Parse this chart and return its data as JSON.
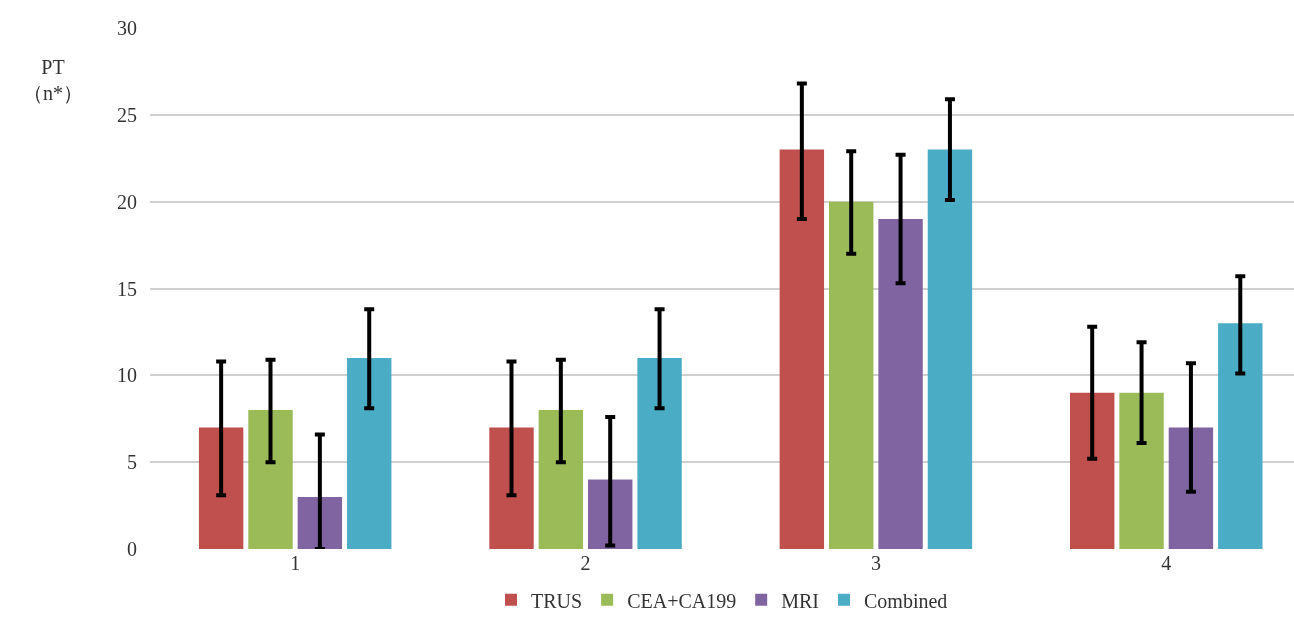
{
  "chart_data": {
    "type": "bar",
    "ylabel": "PT\n（n*）",
    "categories": [
      "1",
      "2",
      "3",
      "4"
    ],
    "series": [
      {
        "name": "TRUS",
        "color": "#c0504d",
        "values": [
          7,
          7,
          23,
          9
        ],
        "errors": [
          [
            3.1,
            10.8
          ],
          [
            3.1,
            10.8
          ],
          [
            19,
            26.8
          ],
          [
            5.2,
            12.8
          ]
        ]
      },
      {
        "name": "CEA+CA199",
        "color": "#9bbb59",
        "values": [
          8,
          8,
          20,
          9
        ],
        "errors": [
          [
            5,
            10.9
          ],
          [
            5,
            10.9
          ],
          [
            17,
            22.9
          ],
          [
            6.1,
            11.9
          ]
        ]
      },
      {
        "name": "MRI",
        "color": "#8064a2",
        "values": [
          3,
          4,
          19,
          7
        ],
        "errors": [
          [
            0,
            6.6
          ],
          [
            0.2,
            7.6
          ],
          [
            15.3,
            22.7
          ],
          [
            3.3,
            10.7
          ]
        ]
      },
      {
        "name": "Combined",
        "color": "#4bacc6",
        "values": [
          11,
          11,
          23,
          13
        ],
        "errors": [
          [
            8.1,
            13.8
          ],
          [
            8.1,
            13.8
          ],
          [
            20.1,
            25.9
          ],
          [
            10.1,
            15.7
          ]
        ]
      }
    ],
    "ylim": [
      0,
      30
    ],
    "yticks": [
      0,
      5,
      10,
      15,
      20,
      25,
      30
    ],
    "grid": "y",
    "legend": "bottom"
  }
}
